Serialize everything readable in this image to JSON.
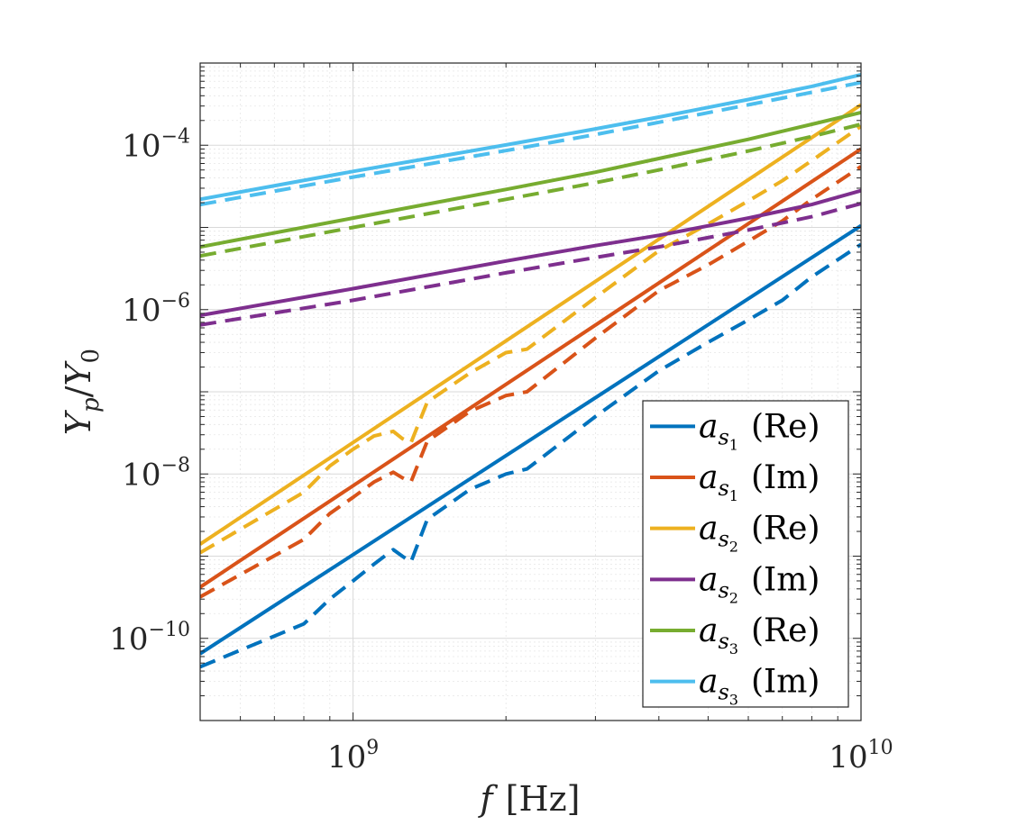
{
  "chart_data": {
    "type": "line",
    "xscale": "log",
    "yscale": "log",
    "xlim": [
      500000000,
      10000000000
    ],
    "ylim": [
      1e-11,
      0.001
    ],
    "xlabel": {
      "main": "f",
      "unit": "[Hz]"
    },
    "ylabel": {
      "main": "Y",
      "sub": "p",
      "den": "Y",
      "den_sub": "0"
    },
    "x_ticks": [
      {
        "value": 1000000000,
        "base": "10",
        "exp": "9"
      },
      {
        "value": 10000000000,
        "base": "10",
        "exp": "10"
      }
    ],
    "y_ticks": [
      {
        "value": 1e-10,
        "base": "10",
        "exp": "−10"
      },
      {
        "value": 1e-08,
        "base": "10",
        "exp": "−8"
      },
      {
        "value": 1e-06,
        "base": "10",
        "exp": "−6"
      },
      {
        "value": 0.0001,
        "base": "10",
        "exp": "−4"
      }
    ],
    "grid": true,
    "legend_position": "bottom-right",
    "series": [
      {
        "name": "a_s1 (Re)",
        "sym": "a",
        "sub": "s",
        "subsub": "1",
        "part": "(Re)",
        "color": "#0072BD",
        "solid": {
          "x": [
            500000000,
            10000000000
          ],
          "y": [
            6.5e-11,
            1.05e-05
          ]
        },
        "dashed": {
          "x": [
            500000000,
            800000000,
            900000000,
            1000000000,
            1100000000,
            1200000000,
            1250000000,
            1300000000,
            1400000000,
            1700000000,
            2000000000,
            2200000000,
            3000000000,
            4000000000,
            5000000000,
            6000000000,
            7000000000,
            8000000000,
            10000000000
          ],
          "y": [
            4.5e-11,
            1.5e-10,
            3e-10,
            5e-10,
            8e-10,
            1.2e-09,
            1e-09,
            8.5e-10,
            2.8e-09,
            6.5e-09,
            1e-08,
            1.15e-08,
            5e-08,
            1.8e-07,
            4e-07,
            7.5e-07,
            1.3e-06,
            2.5e-06,
            6.2e-06
          ]
        }
      },
      {
        "name": "a_s1 (Im)",
        "sym": "a",
        "sub": "s",
        "subsub": "1",
        "part": "(Im)",
        "color": "#D95319",
        "solid": {
          "x": [
            500000000,
            10000000000
          ],
          "y": [
            4.2e-10,
            9e-05
          ]
        },
        "dashed": {
          "x": [
            500000000,
            800000000,
            900000000,
            1000000000,
            1100000000,
            1200000000,
            1250000000,
            1300000000,
            1400000000,
            1700000000,
            2000000000,
            2200000000,
            3000000000,
            4000000000,
            5000000000,
            6000000000,
            7000000000,
            8000000000,
            10000000000
          ],
          "y": [
            3.2e-10,
            1.6e-09,
            3.3e-09,
            5.2e-09,
            8e-09,
            1.05e-08,
            9e-09,
            8e-09,
            2.5e-08,
            5.8e-08,
            9e-08,
            1e-07,
            4.5e-07,
            1.7e-06,
            3.5e-06,
            6.8e-06,
            1.2e-05,
            2.2e-05,
            5.5e-05
          ]
        }
      },
      {
        "name": "a_s2 (Re)",
        "sym": "a",
        "sub": "s",
        "subsub": "2",
        "part": "(Re)",
        "color": "#EDB120",
        "solid": {
          "x": [
            500000000,
            10000000000
          ],
          "y": [
            1.4e-09,
            0.00031
          ]
        },
        "dashed": {
          "x": [
            500000000,
            800000000,
            900000000,
            1000000000,
            1100000000,
            1200000000,
            1250000000,
            1300000000,
            1400000000,
            1700000000,
            2000000000,
            2200000000,
            3000000000,
            4000000000,
            5000000000,
            6000000000,
            7000000000,
            8000000000,
            10000000000
          ],
          "y": [
            1.1e-09,
            6e-09,
            1.25e-08,
            2e-08,
            2.9e-08,
            3.3e-08,
            2.7e-08,
            2.4e-08,
            7.5e-08,
            1.7e-07,
            3e-07,
            3.3e-07,
            1.4e-06,
            5.2e-06,
            1.1e-05,
            2.1e-05,
            3.7e-05,
            6.5e-05,
            0.00017
          ]
        }
      },
      {
        "name": "a_s2 (Im)",
        "sym": "a",
        "sub": "s",
        "subsub": "2",
        "part": "(Im)",
        "color": "#7E2F8E",
        "solid": {
          "x": [
            500000000,
            1000000000,
            2000000000,
            3000000000,
            4000000000,
            6000000000,
            8000000000,
            10000000000
          ],
          "y": [
            8.5e-07,
            1.8e-06,
            3.9e-06,
            6e-06,
            8e-06,
            1.3e-05,
            1.9e-05,
            2.8e-05
          ]
        },
        "dashed": {
          "x": [
            500000000,
            1000000000,
            2000000000,
            3000000000,
            4000000000,
            6000000000,
            8000000000,
            10000000000
          ],
          "y": [
            6.5e-07,
            1.3e-06,
            2.8e-06,
            4.3e-06,
            5.8e-06,
            9.3e-06,
            1.35e-05,
            1.95e-05
          ]
        }
      },
      {
        "name": "a_s3 (Re)",
        "sym": "a",
        "sub": "s",
        "subsub": "3",
        "part": "(Re)",
        "color": "#77AC30",
        "solid": {
          "x": [
            500000000,
            1000000000,
            2000000000,
            3000000000,
            4000000000,
            6000000000,
            8000000000,
            10000000000
          ],
          "y": [
            5.8e-06,
            1.3e-05,
            2.9e-05,
            4.7e-05,
            6.9e-05,
            0.000118,
            0.00018,
            0.00025
          ]
        },
        "dashed": {
          "x": [
            500000000,
            1000000000,
            2000000000,
            3000000000,
            4000000000,
            6000000000,
            8000000000,
            10000000000
          ],
          "y": [
            4.5e-06,
            1e-05,
            2.2e-05,
            3.5e-05,
            5e-05,
            8.5e-05,
            0.000128,
            0.00018
          ]
        }
      },
      {
        "name": "a_s3 (Im)",
        "sym": "a",
        "sub": "s",
        "subsub": "3",
        "part": "(Im)",
        "color": "#4DBEEE",
        "solid": {
          "x": [
            500000000,
            1000000000,
            2000000000,
            3000000000,
            4000000000,
            6000000000,
            8000000000,
            10000000000
          ],
          "y": [
            2.2e-05,
            4.8e-05,
            0.000101,
            0.000158,
            0.00022,
            0.00036,
            0.00052,
            0.00072
          ]
        },
        "dashed": {
          "x": [
            500000000,
            1000000000,
            2000000000,
            3000000000,
            4000000000,
            6000000000,
            8000000000,
            10000000000
          ],
          "y": [
            1.9e-05,
            4.1e-05,
            8.6e-05,
            0.000135,
            0.00019,
            0.00031,
            0.00044,
            0.00058
          ]
        }
      }
    ]
  }
}
